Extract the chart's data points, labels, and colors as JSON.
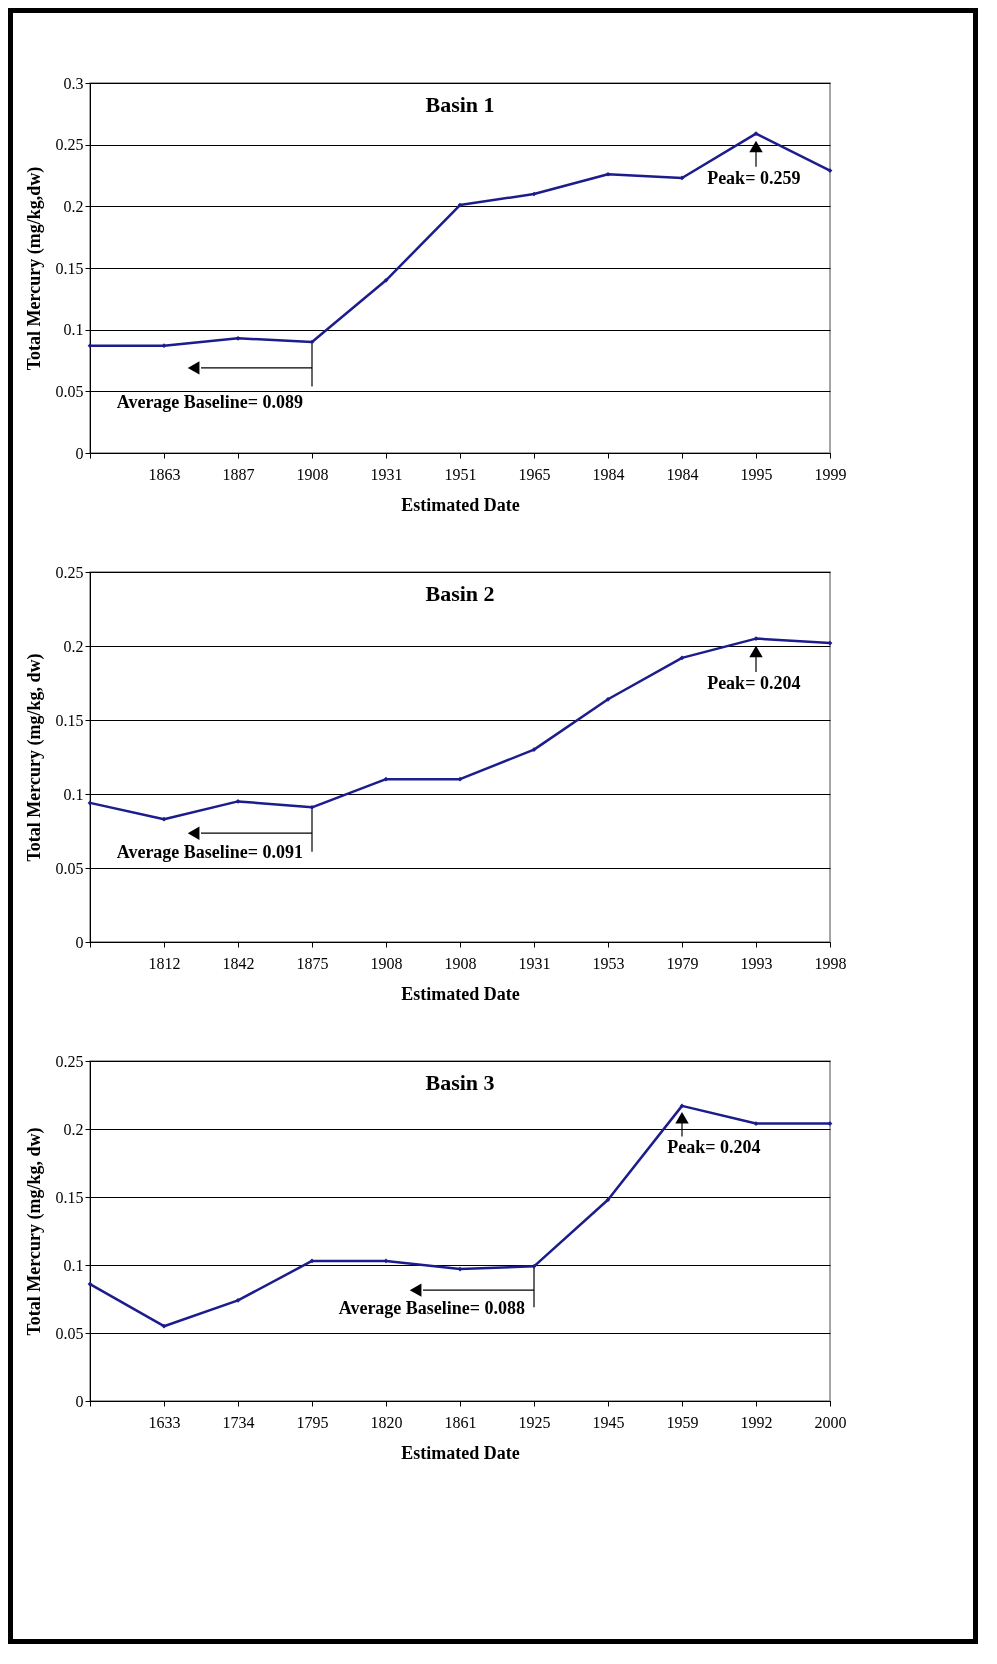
{
  "chart_data": [
    {
      "type": "line",
      "title": "Basin 1",
      "xlabel": "Estimated Date",
      "ylabel": "Total Mercury (mg/kg,dw)",
      "categories": [
        null,
        "1863",
        "1887",
        "1908",
        "1931",
        "1951",
        "1965",
        "1984",
        "1984",
        "1995",
        "1999"
      ],
      "series": [
        {
          "color": "#1c1c8c",
          "values": [
            0.087,
            0.087,
            0.093,
            0.09,
            0.14,
            0.201,
            0.21,
            0.226,
            0.223,
            0.259,
            0.229
          ]
        }
      ],
      "ylim": [
        0,
        0.3
      ],
      "yticks": [
        0,
        0.05,
        0.1,
        0.15,
        0.2,
        0.25,
        0.3
      ],
      "grid": "y",
      "marker": "diamond",
      "line_style": "solid",
      "annotations": [
        {
          "text": "Average Baseline= 0.089",
          "x": "1908",
          "y": 0.09
        },
        {
          "text": "Peak= 0.259",
          "x": "1995",
          "y": 0.259
        }
      ]
    },
    {
      "type": "line",
      "title": "Basin 2",
      "xlabel": "Estimated Date",
      "ylabel": "Total Mercury (mg/kg, dw)",
      "categories": [
        null,
        "1812",
        "1842",
        "1875",
        "1908",
        "1908",
        "1931",
        "1953",
        "1979",
        "1993",
        "1998"
      ],
      "series": [
        {
          "color": "#1c1c8c",
          "values": [
            0.094,
            0.083,
            0.095,
            0.091,
            0.11,
            0.11,
            0.13,
            0.164,
            0.192,
            0.205,
            0.202
          ]
        }
      ],
      "ylim": [
        0,
        0.25
      ],
      "yticks": [
        0,
        0.05,
        0.1,
        0.15,
        0.2,
        0.25
      ],
      "grid": "y",
      "marker": "diamond",
      "line_style": "solid",
      "annotations": [
        {
          "text": "Average Baseline= 0.091",
          "x": "1875",
          "y": 0.091
        },
        {
          "text": "Peak= 0.204",
          "x": "1993",
          "y": 0.205
        }
      ]
    },
    {
      "type": "line",
      "title": "Basin 3",
      "xlabel": "Estimated Date",
      "ylabel": "Total Mercury (mg/kg, dw)",
      "categories": [
        null,
        "1633",
        "1734",
        "1795",
        "1820",
        "1861",
        "1925",
        "1945",
        "1959",
        "1992",
        "2000"
      ],
      "series": [
        {
          "color": "#1c1c8c",
          "values": [
            0.086,
            0.055,
            0.074,
            0.103,
            0.103,
            0.097,
            0.099,
            0.148,
            0.217,
            0.204,
            0.204
          ]
        }
      ],
      "ylim": [
        0,
        0.25
      ],
      "yticks": [
        0,
        0.05,
        0.1,
        0.15,
        0.2,
        0.25
      ],
      "grid": "y",
      "marker": "diamond",
      "line_style": "solid",
      "annotations": [
        {
          "text": "Average Baseline= 0.088",
          "x": "1925",
          "y": 0.099
        },
        {
          "text": "Peak= 0.204",
          "x": "1959",
          "y": 0.217
        }
      ]
    }
  ]
}
